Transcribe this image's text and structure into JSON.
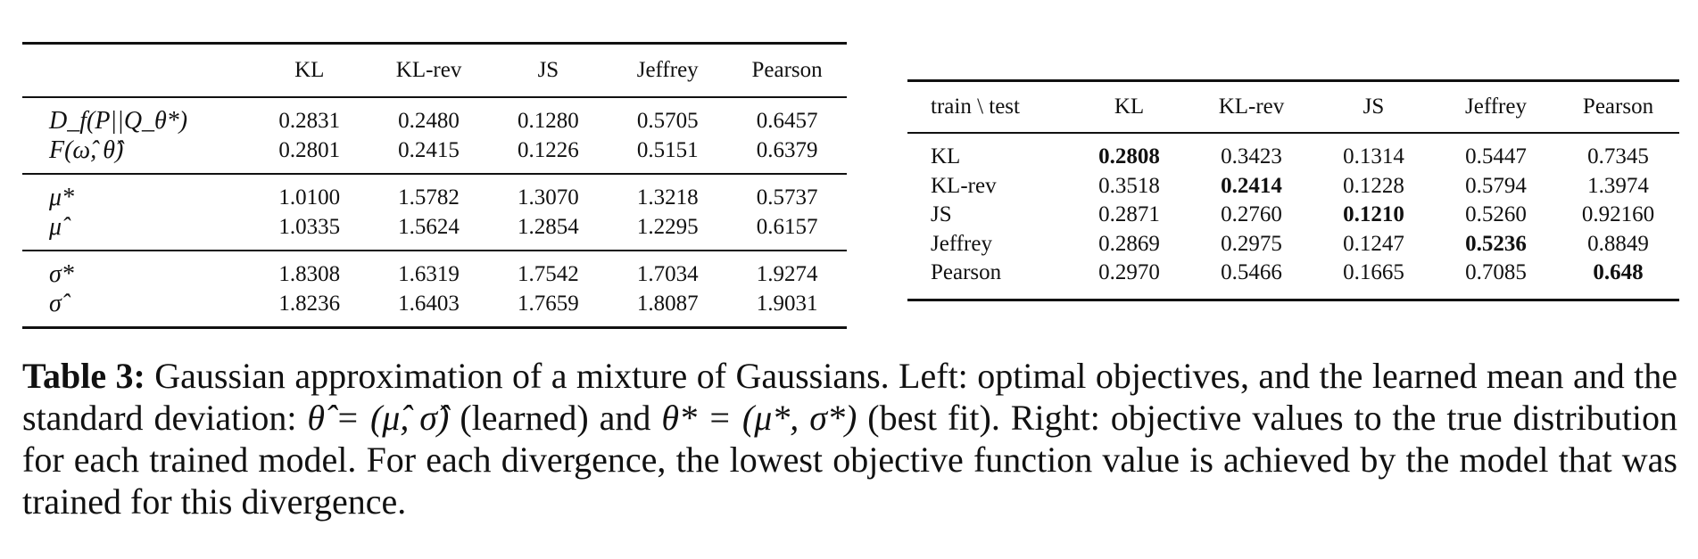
{
  "left_table": {
    "columns": [
      "KL",
      "KL-rev",
      "JS",
      "Jeffrey",
      "Pearson"
    ],
    "groups": [
      {
        "rows": [
          {
            "label": "D_f(P||Q_θ*)",
            "values": [
              "0.2831",
              "0.2480",
              "0.1280",
              "0.5705",
              "0.6457"
            ]
          },
          {
            "label": "F(ω̂, θ̂)",
            "values": [
              "0.2801",
              "0.2415",
              "0.1226",
              "0.5151",
              "0.6379"
            ]
          }
        ]
      },
      {
        "rows": [
          {
            "label": "μ*",
            "values": [
              "1.0100",
              "1.5782",
              "1.3070",
              "1.3218",
              "0.5737"
            ]
          },
          {
            "label": "μ̂",
            "values": [
              "1.0335",
              "1.5624",
              "1.2854",
              "1.2295",
              "0.6157"
            ]
          }
        ]
      },
      {
        "rows": [
          {
            "label": "σ*",
            "values": [
              "1.8308",
              "1.6319",
              "1.7542",
              "1.7034",
              "1.9274"
            ]
          },
          {
            "label": "σ̂",
            "values": [
              "1.8236",
              "1.6403",
              "1.7659",
              "1.8087",
              "1.9031"
            ]
          }
        ]
      }
    ]
  },
  "right_table": {
    "corner": "train \\ test",
    "columns": [
      "KL",
      "KL-rev",
      "JS",
      "Jeffrey",
      "Pearson"
    ],
    "rows": [
      {
        "label": "KL",
        "values": [
          "0.2808",
          "0.3423",
          "0.1314",
          "0.5447",
          "0.7345"
        ],
        "best_index": 0
      },
      {
        "label": "KL-rev",
        "values": [
          "0.3518",
          "0.2414",
          "0.1228",
          "0.5794",
          "1.3974"
        ],
        "best_index": 1
      },
      {
        "label": "JS",
        "values": [
          "0.2871",
          "0.2760",
          "0.1210",
          "0.5260",
          "0.92160"
        ],
        "best_index": 2
      },
      {
        "label": "Jeffrey",
        "values": [
          "0.2869",
          "0.2975",
          "0.1247",
          "0.5236",
          "0.8849"
        ],
        "best_index": 3
      },
      {
        "label": "Pearson",
        "values": [
          "0.2970",
          "0.5466",
          "0.1665",
          "0.7085",
          "0.648"
        ],
        "best_index": 4
      }
    ]
  },
  "caption": {
    "label": "Table 3:",
    "text_1": " Gaussian approximation of a mixture of Gaussians. Left: optimal objectives, and the learned mean and the standard deviation: ",
    "math_1": "θ̂ = (μ̂, σ̂)",
    "text_2": " (learned) and ",
    "math_2": "θ* = (μ*, σ*)",
    "text_3": " (best fit). Right: objective values to the true distribution for each trained model. For each divergence, the lowest objective function value is achieved by the model that was trained for this divergence."
  }
}
